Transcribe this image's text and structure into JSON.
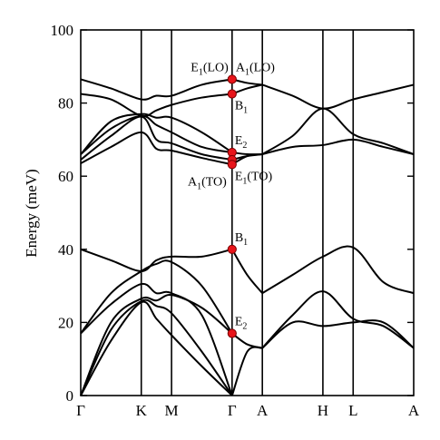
{
  "chart_data": {
    "type": "line",
    "ylabel": "Energy (meV)",
    "ylim": [
      0,
      100
    ],
    "yticks": [
      0,
      20,
      40,
      60,
      80,
      100
    ],
    "kpoints": [
      {
        "label": "Γ",
        "x": 0
      },
      {
        "label": "K",
        "x": 1
      },
      {
        "label": "M",
        "x": 1.5
      },
      {
        "label": "Γ",
        "x": 2.5
      },
      {
        "label": "A",
        "x": 3
      },
      {
        "label": "H",
        "x": 4
      },
      {
        "label": "L",
        "x": 4.5
      },
      {
        "label": "A",
        "x": 5.5
      }
    ],
    "xlim": [
      0,
      5.5
    ],
    "series": [
      {
        "points": [
          [
            0,
            0
          ],
          [
            0.5,
            15
          ],
          [
            1,
            25.5
          ],
          [
            1.25,
            21
          ],
          [
            1.5,
            16.5
          ],
          [
            2,
            8
          ],
          [
            2.5,
            0
          ]
        ]
      },
      {
        "points": [
          [
            0,
            0
          ],
          [
            0.5,
            18
          ],
          [
            1,
            25.8
          ],
          [
            1.25,
            24.5
          ],
          [
            1.5,
            22.5
          ],
          [
            2,
            12
          ],
          [
            2.5,
            0
          ]
        ]
      },
      {
        "points": [
          [
            0,
            0
          ],
          [
            0.5,
            20
          ],
          [
            1,
            26.5
          ],
          [
            1.25,
            26
          ],
          [
            1.5,
            27.5
          ],
          [
            2,
            24
          ],
          [
            2.5,
            17
          ]
        ]
      },
      {
        "points": [
          [
            0,
            17
          ],
          [
            0.5,
            25
          ],
          [
            1,
            30.5
          ],
          [
            1.25,
            28
          ],
          [
            1.5,
            28
          ],
          [
            2,
            22
          ],
          [
            2.5,
            0
          ]
        ]
      },
      {
        "points": [
          [
            0,
            17
          ],
          [
            0.5,
            28
          ],
          [
            1,
            34
          ],
          [
            1.25,
            36
          ],
          [
            1.5,
            36.5
          ],
          [
            2,
            30
          ],
          [
            2.5,
            17
          ]
        ]
      },
      {
        "points": [
          [
            0,
            40
          ],
          [
            0.5,
            37
          ],
          [
            1,
            34
          ],
          [
            1.25,
            37
          ],
          [
            1.5,
            38
          ],
          [
            2,
            38
          ],
          [
            2.5,
            40
          ]
        ]
      },
      {
        "points": [
          [
            0,
            63.5
          ],
          [
            0.5,
            68
          ],
          [
            1,
            72
          ],
          [
            1.25,
            67.5
          ],
          [
            1.5,
            67
          ],
          [
            2,
            65
          ],
          [
            2.5,
            63.2
          ]
        ]
      },
      {
        "points": [
          [
            0,
            64.5
          ],
          [
            0.5,
            71
          ],
          [
            1,
            76.3
          ],
          [
            1.25,
            70
          ],
          [
            1.5,
            69
          ],
          [
            2,
            66
          ],
          [
            2.5,
            64.5
          ]
        ]
      },
      {
        "points": [
          [
            0,
            66
          ],
          [
            0.5,
            73
          ],
          [
            1,
            76.5
          ],
          [
            1.25,
            74
          ],
          [
            1.5,
            72
          ],
          [
            2,
            68
          ],
          [
            2.5,
            66.5
          ]
        ]
      },
      {
        "points": [
          [
            0,
            66
          ],
          [
            0.5,
            75
          ],
          [
            1,
            77
          ],
          [
            1.25,
            76
          ],
          [
            1.5,
            76
          ],
          [
            2,
            72
          ],
          [
            2.5,
            66.5
          ]
        ]
      },
      {
        "points": [
          [
            0,
            82.5
          ],
          [
            0.5,
            81
          ],
          [
            1,
            76.5
          ],
          [
            1.25,
            78
          ],
          [
            1.5,
            79.5
          ],
          [
            2,
            81.5
          ],
          [
            2.5,
            82.5
          ]
        ]
      },
      {
        "points": [
          [
            0,
            86.5
          ],
          [
            0.5,
            84
          ],
          [
            1,
            81
          ],
          [
            1.25,
            82
          ],
          [
            1.5,
            82
          ],
          [
            2,
            85
          ],
          [
            2.5,
            86.5
          ]
        ]
      },
      {
        "points": [
          [
            2.5,
            0
          ],
          [
            2.75,
            12
          ],
          [
            3,
            13
          ]
        ]
      },
      {
        "points": [
          [
            2.5,
            17
          ],
          [
            2.75,
            14
          ],
          [
            3,
            13
          ]
        ]
      },
      {
        "points": [
          [
            2.5,
            40
          ],
          [
            2.75,
            33
          ],
          [
            3,
            28
          ]
        ]
      },
      {
        "points": [
          [
            2.5,
            63.2
          ],
          [
            2.75,
            65.5
          ],
          [
            3,
            66
          ]
        ]
      },
      {
        "points": [
          [
            2.5,
            64.5
          ],
          [
            2.75,
            65.5
          ],
          [
            3,
            66
          ]
        ]
      },
      {
        "points": [
          [
            2.5,
            66.5
          ],
          [
            2.75,
            66
          ],
          [
            3,
            66
          ]
        ]
      },
      {
        "points": [
          [
            2.5,
            82.5
          ],
          [
            2.75,
            84
          ],
          [
            3,
            85
          ]
        ]
      },
      {
        "points": [
          [
            2.5,
            86.5
          ],
          [
            2.75,
            85.5
          ],
          [
            3,
            85
          ]
        ]
      },
      {
        "points": [
          [
            3,
            13
          ],
          [
            3.5,
            20
          ],
          [
            4,
            19
          ],
          [
            4.5,
            20
          ],
          [
            5,
            20
          ],
          [
            5.5,
            13
          ]
        ]
      },
      {
        "points": [
          [
            3,
            13
          ],
          [
            3.5,
            22
          ],
          [
            4,
            28.5
          ],
          [
            4.5,
            21
          ],
          [
            5,
            19
          ],
          [
            5.5,
            13
          ]
        ]
      },
      {
        "points": [
          [
            3,
            28
          ],
          [
            3.5,
            33
          ],
          [
            4,
            38
          ],
          [
            4.5,
            40.5
          ],
          [
            5,
            31
          ],
          [
            5.5,
            28
          ]
        ]
      },
      {
        "points": [
          [
            3,
            66
          ],
          [
            3.5,
            68
          ],
          [
            4,
            68.5
          ],
          [
            4.5,
            70
          ],
          [
            5,
            68
          ],
          [
            5.5,
            66
          ]
        ]
      },
      {
        "points": [
          [
            3,
            66
          ],
          [
            3.5,
            71
          ],
          [
            4,
            78.5
          ],
          [
            4.5,
            71.5
          ],
          [
            5,
            69
          ],
          [
            5.5,
            66
          ]
        ]
      },
      {
        "points": [
          [
            3,
            85
          ],
          [
            3.5,
            82
          ],
          [
            4,
            78.5
          ],
          [
            4.5,
            81
          ],
          [
            5,
            83
          ],
          [
            5.5,
            85
          ]
        ]
      }
    ],
    "modes": [
      {
        "x": 2.5,
        "y": 86.5,
        "label": "E",
        "sub": "1",
        "suffix": "(LO)",
        "side": "left",
        "label2": "A",
        "sub2": "1",
        "suffix2": "(LO)"
      },
      {
        "x": 2.5,
        "y": 82.5,
        "label": "B",
        "sub": "1",
        "suffix": "",
        "side": "right-below"
      },
      {
        "x": 2.5,
        "y": 66.5,
        "label": "E",
        "sub": "2",
        "suffix": "",
        "side": "right-above"
      },
      {
        "x": 2.5,
        "y": 64.5,
        "label": "",
        "sub": "",
        "suffix": "",
        "side": "none"
      },
      {
        "x": 2.5,
        "y": 63.2,
        "label": "E",
        "sub": "1",
        "suffix": "(TO)",
        "side": "right-below"
      },
      {
        "x": 2.5,
        "y": 40,
        "label": "B",
        "sub": "1",
        "suffix": "",
        "side": "right-above"
      },
      {
        "x": 2.5,
        "y": 17,
        "label": "E",
        "sub": "2",
        "suffix": "",
        "side": "right-above"
      }
    ],
    "extra_labels": [
      {
        "x": 2.5,
        "y": 63.2,
        "label": "A",
        "sub": "1",
        "suffix": "(TO)",
        "side": "left-below"
      }
    ],
    "grid": false,
    "legend": "none"
  }
}
